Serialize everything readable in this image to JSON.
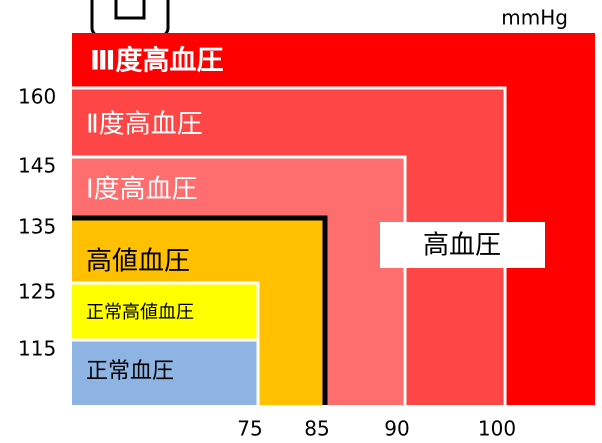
{
  "chart_data": {
    "type": "threshold-regions",
    "unit": "mmHg",
    "overlay_label": "高血圧",
    "regions": [
      {
        "name": "Ⅲ度高血圧",
        "color": "#ff0000",
        "text_color": "#ffffff",
        "x_upper": null,
        "y_upper": null
      },
      {
        "name": "Ⅱ度高血圧",
        "color": "#ff4646",
        "text_color": "#ffffff",
        "x_upper": 100,
        "y_upper": 160
      },
      {
        "name": "Ⅰ度高血圧",
        "color": "#ff6e6e",
        "text_color": "#ffffff",
        "x_upper": 90,
        "y_upper": 145
      },
      {
        "name": "高値血圧",
        "color": "#ffc000",
        "text_color": "#000000",
        "x_upper": 85,
        "y_upper": 135
      },
      {
        "name": "正常高値血圧",
        "color": "#ffff00",
        "text_color": "#000000",
        "x_upper": 75,
        "y_upper": 125
      },
      {
        "name": "正常血圧",
        "color": "#8eb4e3",
        "text_color": "#000000",
        "x_upper": 75,
        "y_upper": 115
      }
    ],
    "xticks": [
      75,
      85,
      90,
      100
    ],
    "yticks": [
      115,
      125,
      135,
      145,
      160
    ]
  }
}
